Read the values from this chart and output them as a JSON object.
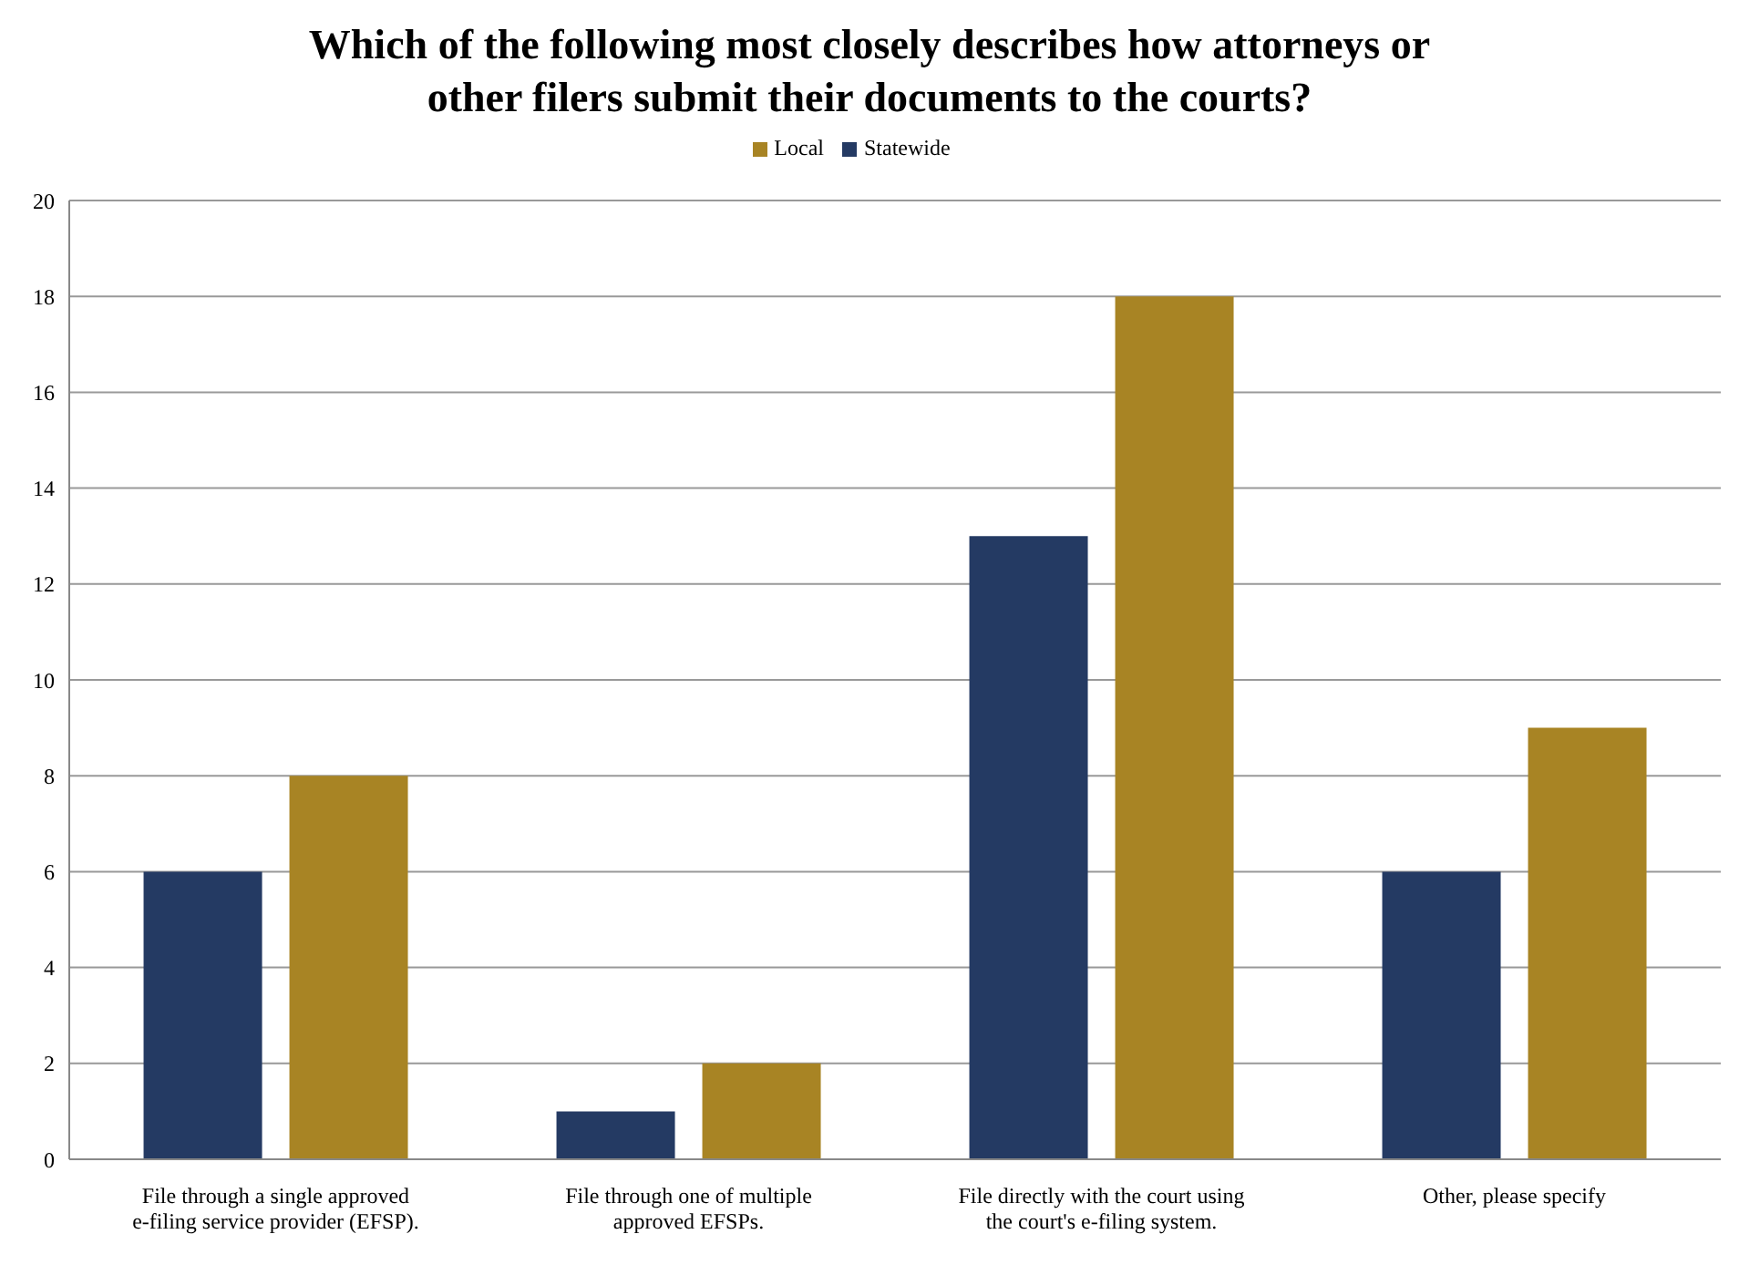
{
  "chart_data": {
    "type": "bar",
    "title": "Which of the following most closely describes how attorneys or other filers submit their documents to the courts?",
    "categories": [
      "File through a single approved e-filing service provider (EFSP).",
      "File through one of multiple approved EFSPs.",
      "File directly with the court using the court's e-filing system.",
      "Other, please specify"
    ],
    "series": [
      {
        "name": "Statewide",
        "color": "#243a63",
        "values": [
          6,
          1,
          13,
          6
        ]
      },
      {
        "name": "Local",
        "color": "#a88424",
        "values": [
          8,
          2,
          18,
          9
        ]
      }
    ],
    "ylim": [
      0,
      20
    ],
    "yticks": [
      0,
      2,
      4,
      6,
      8,
      10,
      12,
      14,
      16,
      18,
      20
    ],
    "grid": "y",
    "legend": "top"
  }
}
